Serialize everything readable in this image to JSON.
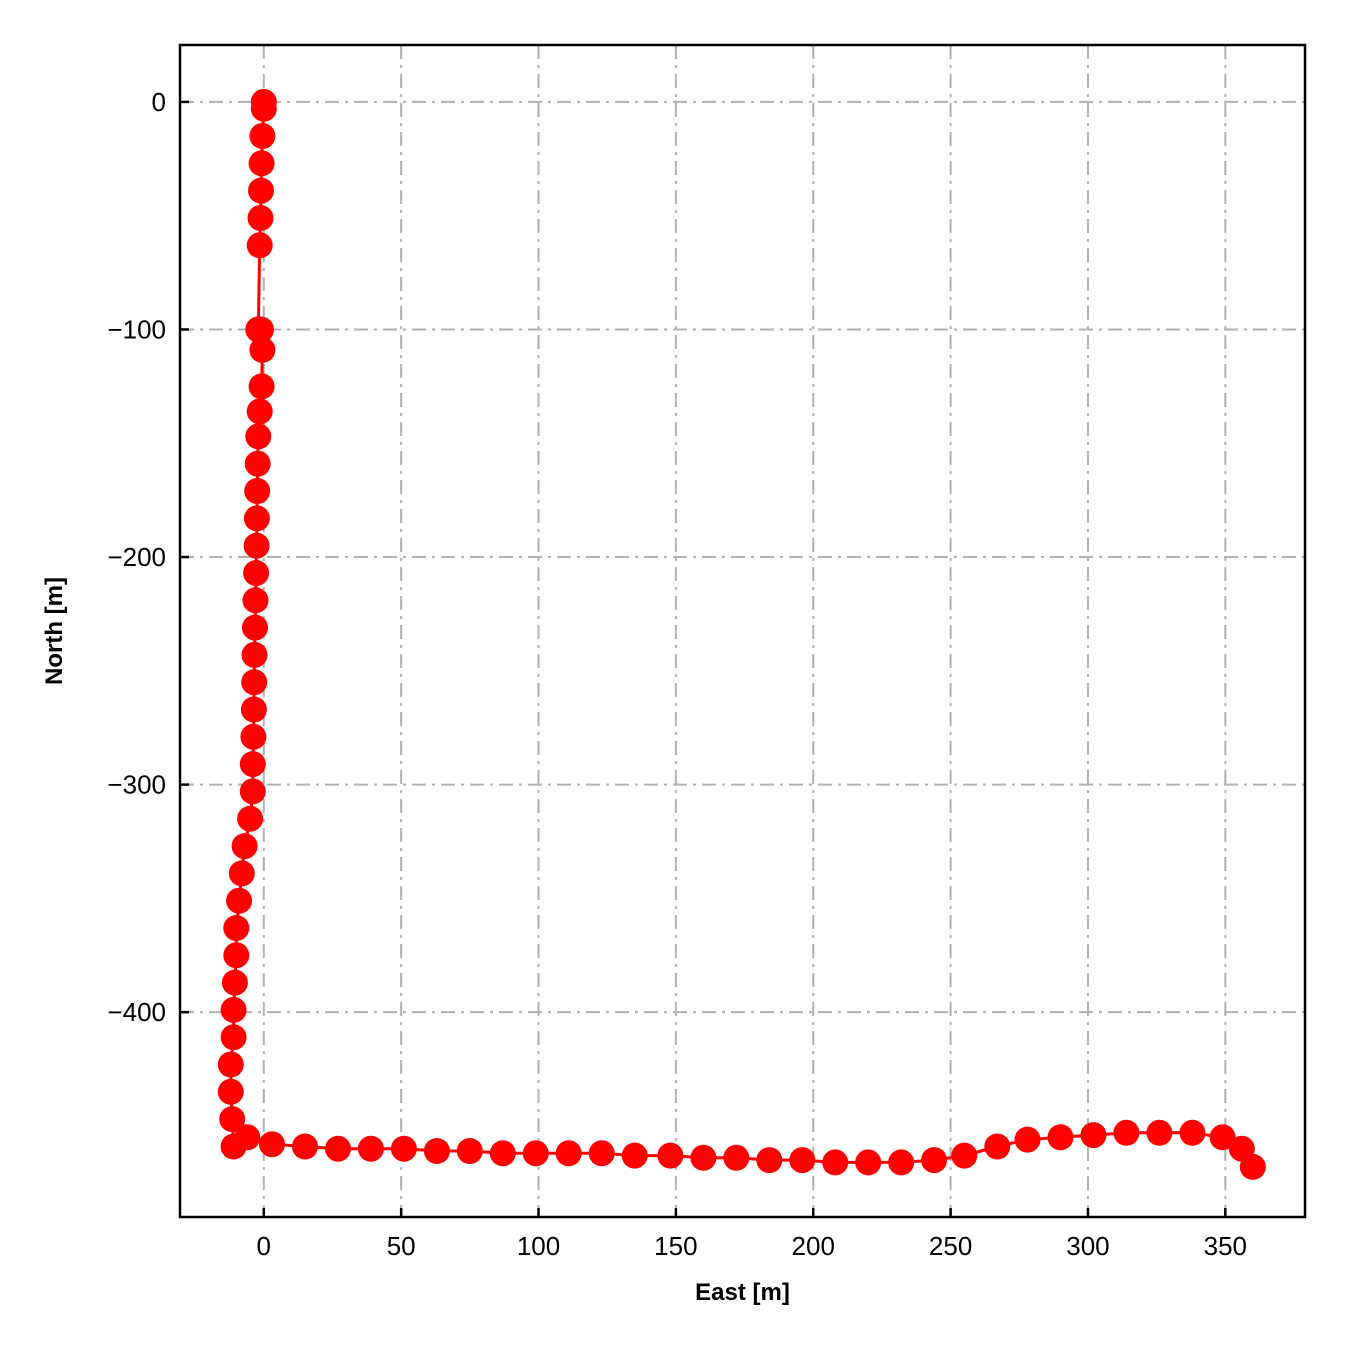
{
  "chart_data": {
    "type": "line",
    "title": "",
    "xlabel": "East [m]",
    "ylabel": "North [m]",
    "xlim": [
      -30.5,
      379
    ],
    "ylim": [
      -490,
      25
    ],
    "xticks": [
      0,
      50,
      100,
      150,
      200,
      250,
      300,
      350
    ],
    "yticks": [
      0,
      -100,
      -200,
      -300,
      -400
    ],
    "xtick_labels": [
      "0",
      "50",
      "100",
      "150",
      "200",
      "250",
      "300",
      "350"
    ],
    "ytick_labels": [
      "0",
      "−100",
      "−200",
      "−300",
      "−400"
    ],
    "grid": true,
    "grid_style": "dash-dot",
    "line_color": "#ff0000",
    "marker": "circle",
    "series": [
      {
        "x": [
          0,
          0,
          -0.5,
          -0.8,
          -1,
          -1.2,
          -1.5,
          -2,
          -1,
          -0.5,
          -0.8,
          -1.5,
          -2,
          -2.2,
          -2.4,
          -2.5,
          -2.6,
          -2.8,
          -3,
          -3.2,
          -3.4,
          -3.5,
          -3.6,
          -3.8,
          -4,
          -4,
          -5,
          -7,
          -8,
          -9,
          -10,
          -10,
          -10.5,
          -11,
          -11,
          -12,
          -12,
          -11.5,
          -11,
          -6,
          3,
          15,
          27,
          39,
          51,
          63,
          75,
          87,
          99,
          111,
          123,
          135,
          148,
          160,
          172,
          184,
          196,
          208,
          220,
          232,
          244,
          255,
          267,
          278,
          290,
          302,
          314,
          326,
          338,
          349,
          356,
          360
        ],
        "y": [
          0,
          -3,
          -15,
          -27,
          -39,
          -51,
          -63,
          -100,
          -100,
          -109,
          -125,
          -136,
          -147,
          -159,
          -171,
          -183,
          -195,
          -207,
          -219,
          -231,
          -243,
          -255,
          -267,
          -279,
          -291,
          -303,
          -315,
          -327,
          -339,
          -351,
          -363,
          -375,
          -387,
          -399,
          -411,
          -423,
          -435,
          -447,
          -459,
          -455,
          -458,
          -459,
          -460,
          -460,
          -460,
          -461,
          -461,
          -462,
          -462,
          -462,
          -462,
          -463,
          -463,
          -464,
          -464,
          -465,
          -465,
          -466,
          -466,
          -466,
          -465,
          -463,
          -459,
          -456,
          -455,
          -454,
          -453,
          -453,
          -453,
          -455,
          -460,
          -468
        ]
      }
    ]
  }
}
